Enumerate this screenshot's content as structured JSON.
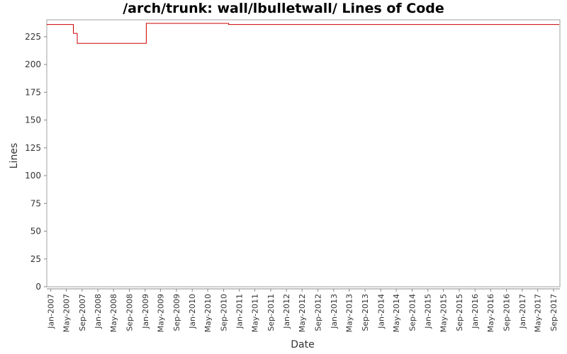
{
  "chart_data": {
    "type": "line",
    "title": "/arch/trunk: wall/lbulletwall/ Lines of Code",
    "xlabel": "Date",
    "ylabel": "Lines",
    "ylim": [
      0,
      237
    ],
    "xlim": [
      "2006-12-01",
      "2017-10-20"
    ],
    "y_ticks": [
      0,
      25,
      50,
      75,
      100,
      125,
      150,
      175,
      200,
      225
    ],
    "x_ticks": [
      {
        "date": "2007-01-01",
        "label": "Jan-2007"
      },
      {
        "date": "2007-05-01",
        "label": "May-2007"
      },
      {
        "date": "2007-09-01",
        "label": "Sep-2007"
      },
      {
        "date": "2008-01-01",
        "label": "Jan-2008"
      },
      {
        "date": "2008-05-01",
        "label": "May-2008"
      },
      {
        "date": "2008-09-01",
        "label": "Sep-2008"
      },
      {
        "date": "2009-01-01",
        "label": "Jan-2009"
      },
      {
        "date": "2009-05-01",
        "label": "May-2009"
      },
      {
        "date": "2009-09-01",
        "label": "Sep-2009"
      },
      {
        "date": "2010-01-01",
        "label": "Jan-2010"
      },
      {
        "date": "2010-05-01",
        "label": "May-2010"
      },
      {
        "date": "2010-09-01",
        "label": "Sep-2010"
      },
      {
        "date": "2011-01-01",
        "label": "Jan-2011"
      },
      {
        "date": "2011-05-01",
        "label": "May-2011"
      },
      {
        "date": "2011-09-01",
        "label": "Sep-2011"
      },
      {
        "date": "2012-01-01",
        "label": "Jan-2012"
      },
      {
        "date": "2012-05-01",
        "label": "May-2012"
      },
      {
        "date": "2012-09-01",
        "label": "Sep-2012"
      },
      {
        "date": "2013-01-01",
        "label": "Jan-2013"
      },
      {
        "date": "2013-05-01",
        "label": "May-2013"
      },
      {
        "date": "2013-09-01",
        "label": "Sep-2013"
      },
      {
        "date": "2014-01-01",
        "label": "Jan-2014"
      },
      {
        "date": "2014-05-01",
        "label": "May-2014"
      },
      {
        "date": "2014-09-01",
        "label": "Sep-2014"
      },
      {
        "date": "2015-01-01",
        "label": "Jan-2015"
      },
      {
        "date": "2015-05-01",
        "label": "May-2015"
      },
      {
        "date": "2015-09-01",
        "label": "Sep-2015"
      },
      {
        "date": "2016-01-01",
        "label": "Jan-2016"
      },
      {
        "date": "2016-05-01",
        "label": "May-2016"
      },
      {
        "date": "2016-09-01",
        "label": "Sep-2016"
      },
      {
        "date": "2017-01-01",
        "label": "Jan-2017"
      },
      {
        "date": "2017-05-01",
        "label": "May-2017"
      },
      {
        "date": "2017-09-01",
        "label": "Sep-2017"
      }
    ],
    "series": [
      {
        "color": "#cc0000",
        "points": [
          {
            "x": "2006-12-01",
            "y": 236
          },
          {
            "x": "2007-06-25",
            "y": 228
          },
          {
            "x": "2007-07-25",
            "y": 219
          },
          {
            "x": "2009-01-10",
            "y": 237
          },
          {
            "x": "2010-10-10",
            "y": 236
          },
          {
            "x": "2017-10-15",
            "y": 236
          }
        ]
      }
    ],
    "grid": false,
    "legend": "none"
  }
}
